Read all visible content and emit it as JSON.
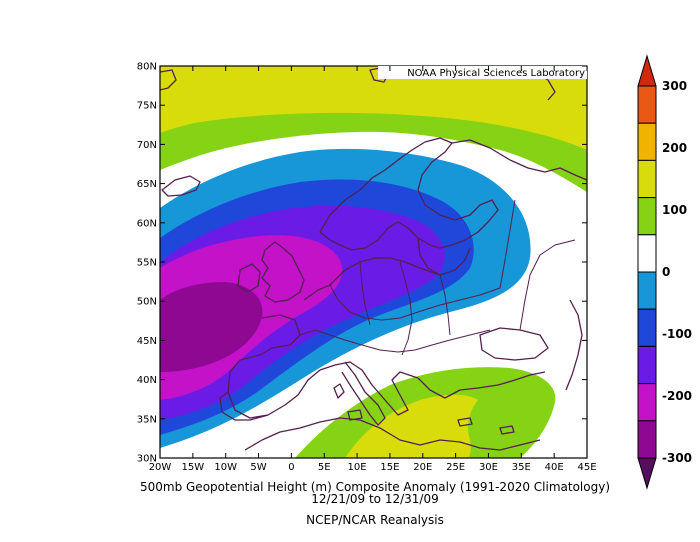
{
  "credit": "NOAA Physical Sciences Laboratory",
  "captions": {
    "line1": "500mb Geopotential Height (m) Composite Anomaly (1991-2020 Climatology)",
    "line2": "12/21/09  to 12/31/09",
    "line3": "NCEP/NCAR Reanalysis"
  },
  "axes": {
    "lat_labels": [
      "80N",
      "75N",
      "70N",
      "65N",
      "60N",
      "55N",
      "50N",
      "45N",
      "40N",
      "35N",
      "30N"
    ],
    "lon_labels": [
      "20W",
      "15W",
      "10W",
      "5W",
      "0",
      "5E",
      "10E",
      "15E",
      "20E",
      "25E",
      "30E",
      "35E",
      "40E",
      "45E"
    ]
  },
  "colorbar": {
    "labels": [
      "300",
      "200",
      "100",
      "0",
      "-100",
      "-200",
      "-300"
    ],
    "levels": [
      {
        "range": "200 to 300",
        "color": "#e95814"
      },
      {
        "range": "150 to 200",
        "color": "#f0b300"
      },
      {
        "range": "100 to 150",
        "color": "#d9dc0b"
      },
      {
        "range": "50 to 100",
        "color": "#86d316"
      },
      {
        "range": "-50 to 50",
        "color": "#ffffff"
      },
      {
        "range": "-100 to -50",
        "color": "#1796d8"
      },
      {
        "range": "-150 to -100",
        "color": "#1f48db"
      },
      {
        "range": "-200 to -150",
        "color": "#6a1ce6"
      },
      {
        "range": "-250 to -200",
        "color": "#c312c8"
      },
      {
        "range": "-300 to -250",
        "color": "#8e0892"
      }
    ],
    "over_color": "#cf2a0e",
    "under_color": "#560e5e"
  },
  "palette": {
    "coastline": "#52204e",
    "frame": "#000000"
  }
}
